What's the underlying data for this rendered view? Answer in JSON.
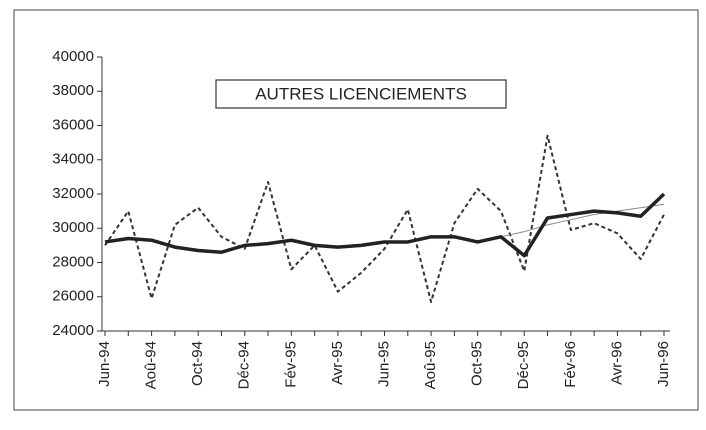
{
  "chart_data": {
    "type": "line",
    "title": "AUTRES LICENCIEMENTS",
    "categories": [
      "Jun-94",
      null,
      "Aoû-94",
      null,
      "Oct-94",
      null,
      "Déc-94",
      null,
      "Fév-95",
      null,
      "Avr-95",
      null,
      "Jun-95",
      null,
      "Aoû-95",
      null,
      "Oct-95",
      null,
      "Déc-95",
      null,
      "Fév-96",
      null,
      "Avr-96",
      null,
      "Jun-96"
    ],
    "series": [
      {
        "color": "#333333",
        "style": "dashed",
        "values": [
          29000,
          31000,
          25900,
          30200,
          31200,
          29500,
          28800,
          32700,
          27600,
          29000,
          26300,
          27400,
          28800,
          31100,
          25700,
          30300,
          32300,
          31000,
          27500,
          35400,
          29900,
          30300,
          29700,
          28200,
          30800
        ]
      },
      {
        "color": "#888888",
        "style": "thin",
        "values": [
          null,
          null,
          null,
          null,
          null,
          null,
          null,
          null,
          null,
          null,
          null,
          null,
          null,
          null,
          null,
          null,
          29200,
          29500,
          29800,
          30200,
          30500,
          30800,
          31000,
          31200,
          31400
        ]
      },
      {
        "color": "#222222",
        "style": "thick",
        "values": [
          29200,
          29400,
          29300,
          28900,
          28700,
          28600,
          29000,
          29100,
          29300,
          29000,
          28900,
          29000,
          29200,
          29200,
          29500,
          29500,
          29200,
          29500,
          28400,
          30600,
          30800,
          31000,
          30900,
          30700,
          32000
        ]
      }
    ],
    "ylim": [
      24000,
      40000
    ],
    "yticks": [
      24000,
      26000,
      28000,
      30000,
      32000,
      34000,
      36000,
      38000,
      40000
    ]
  }
}
